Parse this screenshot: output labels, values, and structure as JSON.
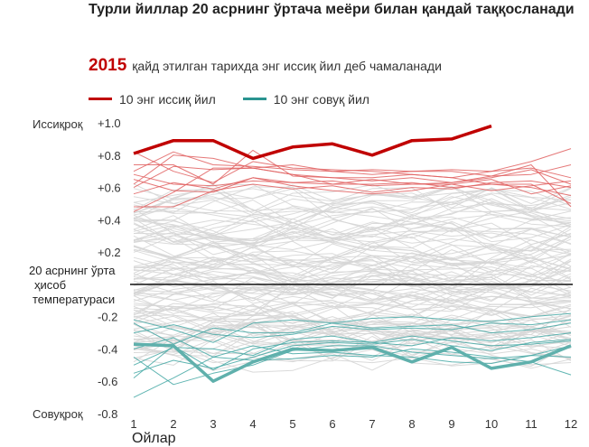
{
  "title": "Турли йиллар 20 асрнинг ўртача меёри билан қандай таққосланади",
  "subtitle": {
    "year": "2015",
    "text": "қайд этилган тарихда энг иссиқ йил деб чамаланади"
  },
  "legend": {
    "warm": {
      "label": "10 энг иссиқ йил",
      "color": "#c00000"
    },
    "cold": {
      "label": "10 энг совуқ йил",
      "color": "#2a9490"
    }
  },
  "chart_data": {
    "type": "line",
    "xlabel": "Ойлар",
    "ylabel_top": "Иссиқроқ",
    "ylabel_bottom": "Совуқроқ",
    "baseline_label": [
      "20 асрнинг ўрта",
      "ҳисоб",
      "температураси"
    ],
    "x": [
      1,
      2,
      3,
      4,
      5,
      6,
      7,
      8,
      9,
      10,
      11,
      12
    ],
    "x_ticks": [
      "1",
      "2",
      "3",
      "4",
      "5",
      "6",
      "7",
      "8",
      "9",
      "10",
      "11",
      "12"
    ],
    "y_ticks": [
      "+1.0",
      "+0.8",
      "+0.6",
      "+0.4",
      "+0.2",
      "-0.2",
      "-0.4",
      "-0.6",
      "-0.8"
    ],
    "y_tick_values": [
      1.0,
      0.8,
      0.6,
      0.4,
      0.2,
      -0.2,
      -0.4,
      -0.6,
      -0.8
    ],
    "ylim": [
      -0.8,
      1.0
    ],
    "grid": false,
    "legend_position": "top-left",
    "highlight": {
      "name": "2015",
      "color": "#c00000",
      "values": [
        0.81,
        0.89,
        0.89,
        0.78,
        0.85,
        0.87,
        0.8,
        0.89,
        0.9,
        0.98
      ]
    },
    "coldest": {
      "color": "#5fb0ac",
      "values": [
        -0.37,
        -0.38,
        -0.6,
        -0.48,
        -0.4,
        -0.41,
        -0.39,
        -0.48,
        -0.39,
        -0.52,
        -0.48,
        -0.38
      ]
    },
    "warm_series": [
      [
        0.7,
        0.82,
        0.74,
        0.73,
        0.71,
        0.7,
        0.71,
        0.7,
        0.71,
        0.7,
        0.76,
        0.84
      ],
      [
        0.62,
        0.8,
        0.78,
        0.72,
        0.74,
        0.7,
        0.68,
        0.7,
        0.7,
        0.67,
        0.68,
        0.74
      ],
      [
        0.74,
        0.74,
        0.62,
        0.83,
        0.67,
        0.66,
        0.66,
        0.68,
        0.66,
        0.62,
        0.6,
        0.55
      ],
      [
        0.6,
        0.73,
        0.71,
        0.72,
        0.68,
        0.66,
        0.64,
        0.66,
        0.63,
        0.66,
        0.71,
        0.62
      ],
      [
        0.56,
        0.63,
        0.59,
        0.66,
        0.61,
        0.58,
        0.56,
        0.58,
        0.62,
        0.65,
        0.56,
        0.61
      ],
      [
        0.68,
        0.62,
        0.61,
        0.64,
        0.63,
        0.62,
        0.62,
        0.63,
        0.6,
        0.62,
        0.62,
        0.5
      ],
      [
        0.45,
        0.57,
        0.72,
        0.72,
        0.68,
        0.62,
        0.65,
        0.62,
        0.63,
        0.67,
        0.74,
        0.48
      ],
      [
        0.82,
        0.7,
        0.63,
        0.76,
        0.72,
        0.71,
        0.7,
        0.68,
        0.66,
        0.7,
        0.72,
        0.66
      ],
      [
        0.48,
        0.48,
        0.58,
        0.62,
        0.59,
        0.61,
        0.57,
        0.6,
        0.59,
        0.63,
        0.64,
        0.6
      ],
      [
        0.65,
        0.58,
        0.57,
        0.66,
        0.63,
        0.64,
        0.61,
        0.62,
        0.62,
        0.58,
        0.61,
        0.64
      ]
    ],
    "cold_series": [
      [
        -0.55,
        -0.47,
        -0.52,
        -0.45,
        -0.38,
        -0.36,
        -0.37,
        -0.34,
        -0.38,
        -0.41,
        -0.36,
        -0.34
      ],
      [
        -0.7,
        -0.58,
        -0.45,
        -0.47,
        -0.46,
        -0.44,
        -0.45,
        -0.4,
        -0.42,
        -0.45,
        -0.48,
        -0.56
      ],
      [
        -0.5,
        -0.39,
        -0.4,
        -0.44,
        -0.34,
        -0.32,
        -0.36,
        -0.32,
        -0.35,
        -0.38,
        -0.37,
        -0.35
      ],
      [
        -0.24,
        -0.37,
        -0.27,
        -0.3,
        -0.3,
        -0.24,
        -0.27,
        -0.26,
        -0.25,
        -0.3,
        -0.28,
        -0.24
      ],
      [
        -0.45,
        -0.62,
        -0.55,
        -0.5,
        -0.41,
        -0.38,
        -0.38,
        -0.42,
        -0.44,
        -0.46,
        -0.44,
        -0.38
      ],
      [
        -0.22,
        -0.28,
        -0.36,
        -0.24,
        -0.22,
        -0.24,
        -0.21,
        -0.2,
        -0.22,
        -0.23,
        -0.2,
        -0.18
      ],
      [
        -0.4,
        -0.33,
        -0.45,
        -0.38,
        -0.43,
        -0.42,
        -0.44,
        -0.45,
        -0.48,
        -0.49,
        -0.44,
        -0.45
      ],
      [
        -0.3,
        -0.25,
        -0.31,
        -0.33,
        -0.31,
        -0.26,
        -0.28,
        -0.27,
        -0.28,
        -0.24,
        -0.25,
        -0.22
      ],
      [
        -0.58,
        -0.38,
        -0.53,
        -0.4,
        -0.36,
        -0.35,
        -0.36,
        -0.38,
        -0.33,
        -0.35,
        -0.33,
        -0.3
      ]
    ]
  }
}
